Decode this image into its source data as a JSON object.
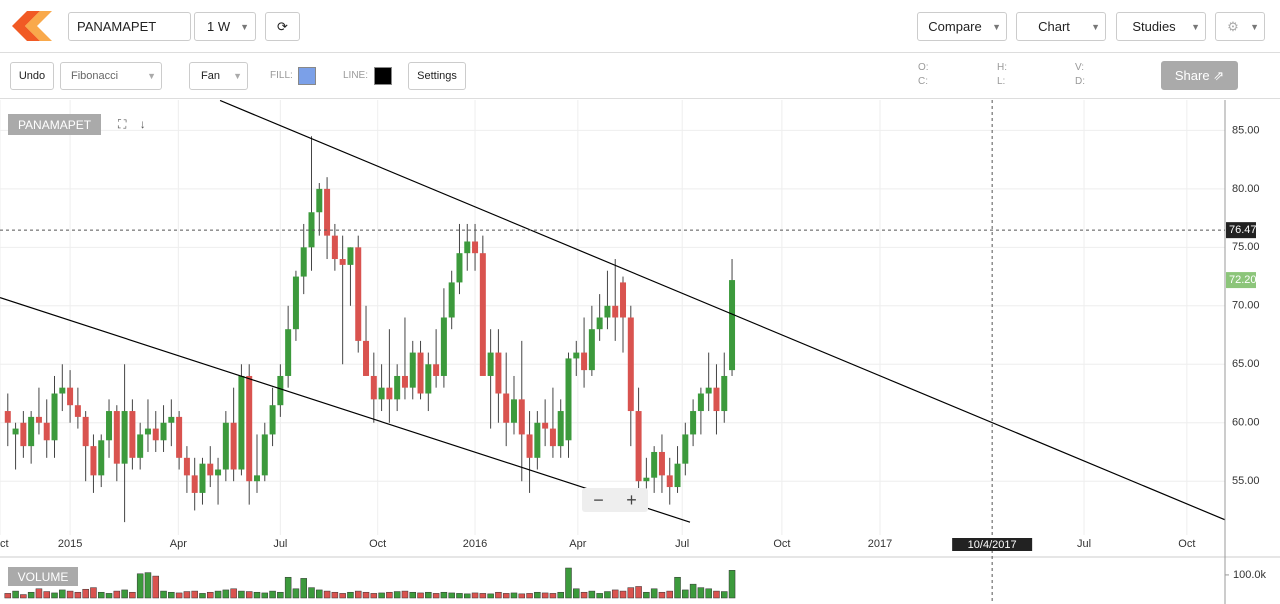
{
  "toolbar": {
    "symbol": "PANAMAPET",
    "interval": "1 W",
    "compare": "Compare",
    "chart": "Chart",
    "studies": "Studies"
  },
  "drawbar": {
    "undo": "Undo",
    "tool": "Fibonacci",
    "fan": "Fan",
    "fill": "FILL:",
    "line": "LINE:",
    "settings": "Settings",
    "fill_color": "#7ba0e8",
    "line_color": "#000000",
    "ohlc": [
      "O:",
      "H:",
      "V:",
      "C:",
      "L:",
      "D:"
    ],
    "share": "Share"
  },
  "chart_data": {
    "type": "candlestick",
    "symbol_label": "PANAMAPET",
    "volume_label": "VOLUME",
    "up_color": "#3c9a3c",
    "down_color": "#d9534f",
    "candles": {
      "x": [
        -8,
        -7,
        -6,
        -5,
        -4,
        -3,
        -2,
        -1,
        0,
        1,
        2,
        3,
        4,
        5,
        6,
        7,
        8,
        9,
        10,
        11,
        12,
        13,
        14,
        15,
        16,
        17,
        18,
        19,
        20,
        21,
        22,
        23,
        24,
        25,
        26,
        27,
        28,
        29,
        30,
        31,
        32,
        33,
        34,
        35,
        36,
        37,
        38,
        39,
        40,
        41,
        42,
        43,
        44,
        45,
        46,
        47,
        48,
        49,
        50,
        51,
        52,
        53,
        54,
        55,
        56,
        57,
        58,
        59,
        60,
        61,
        62,
        63,
        64,
        65,
        66,
        67,
        68,
        69,
        70,
        71,
        72,
        73,
        74,
        75,
        76,
        77,
        78,
        79,
        80,
        81,
        82,
        83,
        84,
        85
      ],
      "open": [
        61,
        59,
        60,
        58,
        60.5,
        60,
        58.5,
        62.5,
        63,
        61.5,
        60.5,
        58,
        55.5,
        58.5,
        61,
        56.5,
        61,
        57,
        59,
        59.5,
        58.5,
        60,
        60.5,
        57,
        55.5,
        54,
        56.5,
        55.5,
        56,
        60,
        56,
        64,
        55,
        55.5,
        59,
        61.5,
        64,
        68,
        72.5,
        75,
        78,
        80,
        76,
        74,
        73.5,
        75,
        67,
        64,
        62,
        63,
        62,
        64,
        63,
        66,
        62.5,
        65,
        64,
        69,
        72,
        74.5,
        75.5,
        74.5,
        64,
        66,
        62.5,
        60,
        62,
        59,
        57,
        60,
        59.5,
        58,
        58.5,
        65.5,
        66,
        64.5,
        68,
        69,
        70,
        72,
        69,
        61,
        55,
        55.3,
        57.5,
        55.5,
        54.5,
        56.5,
        59,
        61,
        62.5,
        63,
        61,
        64.5
      ],
      "high": [
        62.5,
        60,
        61,
        61,
        63,
        62,
        64,
        65,
        64.5,
        63,
        61,
        59,
        59,
        62,
        61.5,
        65,
        62,
        60,
        62,
        61,
        61.5,
        62,
        61,
        58,
        57,
        57,
        58,
        57,
        61,
        63,
        65,
        65,
        59,
        60,
        63,
        65,
        70,
        73,
        77,
        84.5,
        80.5,
        81,
        77,
        76,
        75,
        76,
        70,
        66,
        65,
        68,
        65,
        69,
        67,
        67,
        66,
        68,
        71.5,
        73,
        77,
        77,
        77,
        76,
        68,
        68,
        66,
        64,
        67,
        61,
        61,
        62,
        63,
        62,
        66,
        67,
        69,
        70,
        71,
        73,
        74,
        72.5,
        70,
        63,
        57,
        58,
        59,
        57,
        58,
        60,
        62,
        63,
        66,
        65,
        66,
        74
      ],
      "low": [
        58,
        56,
        57,
        56.5,
        59,
        57,
        57,
        61,
        60,
        59.5,
        55,
        54,
        54.5,
        57,
        55,
        51.5,
        56,
        56,
        57.5,
        57.5,
        57.5,
        58,
        56,
        54,
        52.5,
        53,
        54.5,
        53,
        55,
        55,
        55.5,
        53,
        54,
        55,
        58,
        60.5,
        63,
        67,
        71,
        73,
        76,
        74,
        73,
        65,
        70,
        66,
        64,
        60,
        61,
        60,
        61,
        62,
        62,
        62,
        61,
        63,
        63,
        68,
        71,
        73,
        73,
        65,
        59.5,
        60,
        58,
        59,
        55,
        54,
        56,
        58,
        57,
        57,
        57,
        64,
        63,
        64,
        67,
        68,
        67,
        66,
        58,
        52.5,
        53,
        54,
        54,
        53,
        54,
        55.5,
        58,
        59,
        61,
        59,
        60,
        64
      ],
      "close": [
        60,
        59.5,
        58,
        60.5,
        60,
        58.5,
        62.5,
        63,
        61.5,
        60.5,
        58,
        55.5,
        58.5,
        61,
        56.5,
        61,
        57,
        59,
        59.5,
        58.5,
        60,
        60.5,
        57,
        55.5,
        54,
        56.5,
        55.5,
        56,
        60,
        56,
        64,
        55,
        55.5,
        59,
        61.5,
        64,
        68,
        72.5,
        75,
        78,
        80,
        76,
        74,
        73.5,
        75,
        67,
        64,
        62,
        63,
        62,
        64,
        63,
        66,
        62.5,
        65,
        64,
        69,
        72,
        74.5,
        75.5,
        74.5,
        64,
        66,
        62.5,
        60,
        62,
        59,
        57,
        60,
        59.5,
        58,
        61,
        65.5,
        66,
        64.5,
        68,
        69,
        70,
        69,
        69,
        61,
        55,
        55.3,
        57.5,
        55.5,
        54.5,
        56.5,
        59,
        61,
        62.5,
        63,
        61,
        64,
        72.2
      ]
    },
    "volume": [
      20000,
      30000,
      15000,
      25000,
      40000,
      28000,
      22000,
      35000,
      30000,
      25000,
      38000,
      45000,
      25000,
      20000,
      30000,
      35000,
      25000,
      105000,
      110000,
      95000,
      30000,
      25000,
      22000,
      28000,
      30000,
      20000,
      25000,
      30000,
      35000,
      40000,
      30000,
      28000,
      25000,
      22000,
      30000,
      25000,
      90000,
      40000,
      85000,
      45000,
      35000,
      30000,
      25000,
      20000,
      25000,
      30000,
      25000,
      20000,
      22000,
      25000,
      28000,
      30000,
      25000,
      22000,
      25000,
      20000,
      25000,
      22000,
      20000,
      18000,
      22000,
      20000,
      18000,
      25000,
      20000,
      22000,
      18000,
      20000,
      25000,
      22000,
      20000,
      25000,
      130000,
      40000,
      25000,
      30000,
      20000,
      28000,
      35000,
      30000,
      45000,
      50000,
      25000,
      40000,
      25000,
      30000,
      90000,
      35000,
      60000,
      45000,
      40000,
      30000,
      28000,
      120000
    ],
    "last_label": "72.20",
    "xlim": [
      -9,
      148.3
    ],
    "ylim": [
      50.4,
      87.6
    ],
    "y2lim": [
      0,
      130000
    ],
    "xticks": [
      {
        "value": -9,
        "label": "Oct"
      },
      {
        "value": 0,
        "label": "2015"
      },
      {
        "value": 13.9,
        "label": "Apr"
      },
      {
        "value": 27,
        "label": "Jul"
      },
      {
        "value": 39.5,
        "label": "Oct"
      },
      {
        "value": 52,
        "label": "2016"
      },
      {
        "value": 65.2,
        "label": "Apr"
      },
      {
        "value": 78.6,
        "label": "Jul"
      },
      {
        "value": 91.4,
        "label": "Oct"
      },
      {
        "value": 104,
        "label": "2017"
      },
      {
        "value": 130.2,
        "label": "Jul"
      },
      {
        "value": 143.4,
        "label": "Oct"
      }
    ],
    "yticks": [
      {
        "value": 55,
        "label": "55.00"
      },
      {
        "value": 60,
        "label": "60.00"
      },
      {
        "value": 65,
        "label": "65.00"
      },
      {
        "value": 70,
        "label": "70.00"
      },
      {
        "value": 75,
        "label": "75.00"
      },
      {
        "value": 80,
        "label": "80.00"
      },
      {
        "value": 85,
        "label": "85.00"
      }
    ],
    "y2ticks": [
      {
        "value": 100000,
        "label": "100.0k"
      }
    ],
    "trendlines": [
      {
        "x": [
          19.26,
          148.3
        ],
        "y": [
          87.56,
          51.7
        ]
      },
      {
        "x": [
          -9,
          79.6
        ],
        "y": [
          70.7,
          51.5
        ]
      }
    ],
    "crosshair": {
      "y": 76.47,
      "x": 118.4,
      "x_label": "10/4/2017"
    },
    "grid": true
  }
}
